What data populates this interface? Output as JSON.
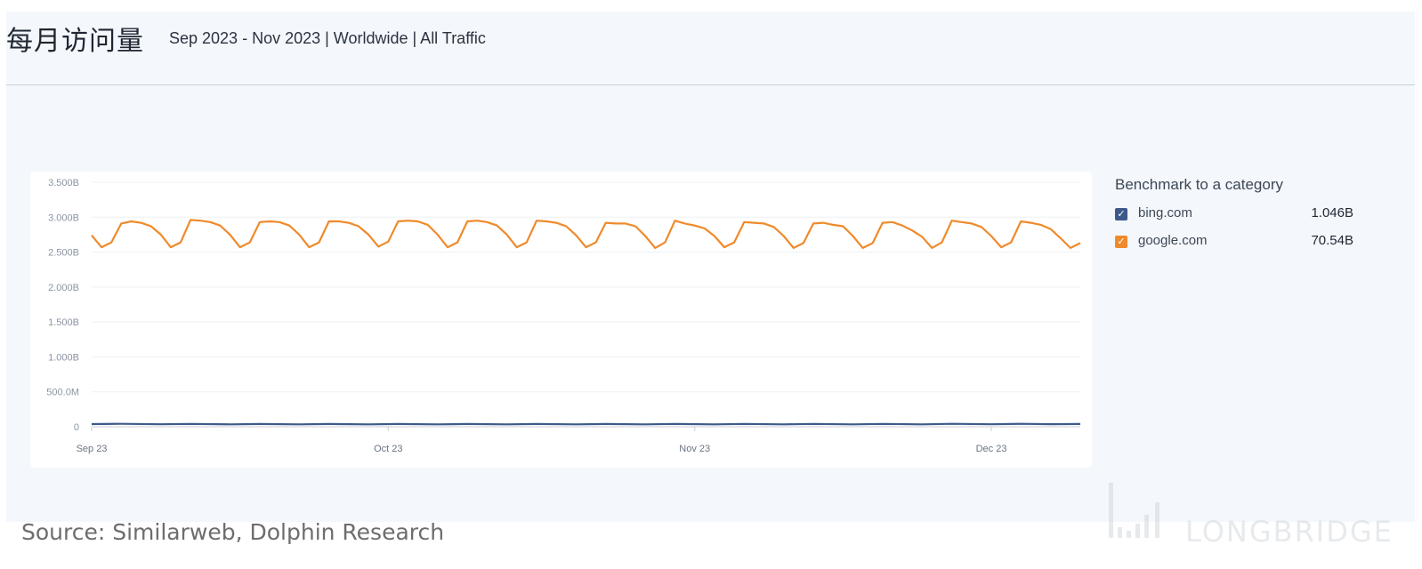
{
  "header": {
    "title": "每月访问量",
    "subtitle": "Sep 2023 - Nov 2023 | Worldwide | All Traffic"
  },
  "legend": {
    "title": "Benchmark to a category",
    "items": [
      {
        "name": "bing.com",
        "value": "1.046B",
        "color": "#3d5a8a",
        "check_icon": "checkbox-checked-icon"
      },
      {
        "name": "google.com",
        "value": "70.54B",
        "color": "#ef8a2b",
        "check_icon": "checkbox-checked-icon"
      }
    ]
  },
  "source": "Source: Similarweb, Dolphin Research",
  "watermark": {
    "text": "LONGBRIDGE",
    "icon": "bar-chart-logo-icon"
  },
  "chart_data": {
    "type": "line",
    "title": "",
    "xlabel": "",
    "ylabel": "",
    "ylim": [
      0,
      3500000000
    ],
    "y_ticks": [
      {
        "value": 0,
        "label": "0"
      },
      {
        "value": 500000000,
        "label": "500.0M"
      },
      {
        "value": 1000000000,
        "label": "1.000B"
      },
      {
        "value": 1500000000,
        "label": "1.500B"
      },
      {
        "value": 2000000000,
        "label": "2.000B"
      },
      {
        "value": 2500000000,
        "label": "2.500B"
      },
      {
        "value": 3000000000,
        "label": "3.000B"
      },
      {
        "value": 3500000000,
        "label": "3.500B"
      }
    ],
    "x_ticks": [
      {
        "date": "2023-09-01",
        "label": "Sep 23"
      },
      {
        "date": "2023-10-01",
        "label": "Oct 23"
      },
      {
        "date": "2023-11-01",
        "label": "Nov 23"
      },
      {
        "date": "2023-12-01",
        "label": "Dec 23"
      }
    ],
    "xlim": [
      "2023-09-01",
      "2023-12-10"
    ],
    "grid": true,
    "legend_position": "right",
    "series": [
      {
        "name": "google.com",
        "color": "#ef8a2b",
        "points": [
          [
            "2023-09-01",
            2740000000
          ],
          [
            "2023-09-02",
            2570000000
          ],
          [
            "2023-09-03",
            2640000000
          ],
          [
            "2023-09-04",
            2910000000
          ],
          [
            "2023-09-05",
            2940000000
          ],
          [
            "2023-09-06",
            2920000000
          ],
          [
            "2023-09-07",
            2870000000
          ],
          [
            "2023-09-08",
            2750000000
          ],
          [
            "2023-09-09",
            2570000000
          ],
          [
            "2023-09-10",
            2640000000
          ],
          [
            "2023-09-11",
            2960000000
          ],
          [
            "2023-09-12",
            2950000000
          ],
          [
            "2023-09-13",
            2930000000
          ],
          [
            "2023-09-14",
            2880000000
          ],
          [
            "2023-09-15",
            2750000000
          ],
          [
            "2023-09-16",
            2570000000
          ],
          [
            "2023-09-17",
            2640000000
          ],
          [
            "2023-09-18",
            2930000000
          ],
          [
            "2023-09-19",
            2940000000
          ],
          [
            "2023-09-20",
            2930000000
          ],
          [
            "2023-09-21",
            2880000000
          ],
          [
            "2023-09-22",
            2750000000
          ],
          [
            "2023-09-23",
            2570000000
          ],
          [
            "2023-09-24",
            2640000000
          ],
          [
            "2023-09-25",
            2940000000
          ],
          [
            "2023-09-26",
            2940000000
          ],
          [
            "2023-09-27",
            2920000000
          ],
          [
            "2023-09-28",
            2870000000
          ],
          [
            "2023-09-29",
            2750000000
          ],
          [
            "2023-09-30",
            2580000000
          ],
          [
            "2023-10-01",
            2650000000
          ],
          [
            "2023-10-02",
            2940000000
          ],
          [
            "2023-10-03",
            2950000000
          ],
          [
            "2023-10-04",
            2940000000
          ],
          [
            "2023-10-05",
            2890000000
          ],
          [
            "2023-10-06",
            2750000000
          ],
          [
            "2023-10-07",
            2570000000
          ],
          [
            "2023-10-08",
            2640000000
          ],
          [
            "2023-10-09",
            2940000000
          ],
          [
            "2023-10-10",
            2950000000
          ],
          [
            "2023-10-11",
            2930000000
          ],
          [
            "2023-10-12",
            2880000000
          ],
          [
            "2023-10-13",
            2750000000
          ],
          [
            "2023-10-14",
            2570000000
          ],
          [
            "2023-10-15",
            2640000000
          ],
          [
            "2023-10-16",
            2950000000
          ],
          [
            "2023-10-17",
            2940000000
          ],
          [
            "2023-10-18",
            2920000000
          ],
          [
            "2023-10-19",
            2870000000
          ],
          [
            "2023-10-20",
            2740000000
          ],
          [
            "2023-10-21",
            2570000000
          ],
          [
            "2023-10-22",
            2640000000
          ],
          [
            "2023-10-23",
            2920000000
          ],
          [
            "2023-10-24",
            2910000000
          ],
          [
            "2023-10-25",
            2910000000
          ],
          [
            "2023-10-26",
            2870000000
          ],
          [
            "2023-10-27",
            2730000000
          ],
          [
            "2023-10-28",
            2560000000
          ],
          [
            "2023-10-29",
            2640000000
          ],
          [
            "2023-10-30",
            2950000000
          ],
          [
            "2023-10-31",
            2910000000
          ],
          [
            "2023-11-01",
            2880000000
          ],
          [
            "2023-11-02",
            2840000000
          ],
          [
            "2023-11-03",
            2730000000
          ],
          [
            "2023-11-04",
            2570000000
          ],
          [
            "2023-11-05",
            2640000000
          ],
          [
            "2023-11-06",
            2930000000
          ],
          [
            "2023-11-07",
            2920000000
          ],
          [
            "2023-11-08",
            2910000000
          ],
          [
            "2023-11-09",
            2860000000
          ],
          [
            "2023-11-10",
            2730000000
          ],
          [
            "2023-11-11",
            2560000000
          ],
          [
            "2023-11-12",
            2630000000
          ],
          [
            "2023-11-13",
            2910000000
          ],
          [
            "2023-11-14",
            2920000000
          ],
          [
            "2023-11-15",
            2890000000
          ],
          [
            "2023-11-16",
            2870000000
          ],
          [
            "2023-11-17",
            2730000000
          ],
          [
            "2023-11-18",
            2560000000
          ],
          [
            "2023-11-19",
            2630000000
          ],
          [
            "2023-11-20",
            2920000000
          ],
          [
            "2023-11-21",
            2930000000
          ],
          [
            "2023-11-22",
            2880000000
          ],
          [
            "2023-11-23",
            2810000000
          ],
          [
            "2023-11-24",
            2720000000
          ],
          [
            "2023-11-25",
            2560000000
          ],
          [
            "2023-11-26",
            2640000000
          ],
          [
            "2023-11-27",
            2950000000
          ],
          [
            "2023-11-28",
            2930000000
          ],
          [
            "2023-11-29",
            2910000000
          ],
          [
            "2023-11-30",
            2860000000
          ],
          [
            "2023-12-01",
            2730000000
          ],
          [
            "2023-12-02",
            2570000000
          ],
          [
            "2023-12-03",
            2640000000
          ],
          [
            "2023-12-04",
            2940000000
          ],
          [
            "2023-12-05",
            2920000000
          ],
          [
            "2023-12-06",
            2890000000
          ],
          [
            "2023-12-07",
            2830000000
          ],
          [
            "2023-12-08",
            2700000000
          ],
          [
            "2023-12-09",
            2560000000
          ],
          [
            "2023-12-10",
            2630000000
          ]
        ]
      },
      {
        "name": "bing.com",
        "color": "#3d5a8a",
        "points": [
          [
            "2023-09-01",
            38000000
          ],
          [
            "2023-09-04",
            42000000
          ],
          [
            "2023-09-08",
            36000000
          ],
          [
            "2023-09-11",
            41000000
          ],
          [
            "2023-09-15",
            35000000
          ],
          [
            "2023-09-18",
            40000000
          ],
          [
            "2023-09-22",
            35000000
          ],
          [
            "2023-09-25",
            40000000
          ],
          [
            "2023-09-29",
            34000000
          ],
          [
            "2023-10-02",
            40000000
          ],
          [
            "2023-10-06",
            35000000
          ],
          [
            "2023-10-09",
            40000000
          ],
          [
            "2023-10-13",
            35000000
          ],
          [
            "2023-10-16",
            40000000
          ],
          [
            "2023-10-20",
            35000000
          ],
          [
            "2023-10-23",
            40000000
          ],
          [
            "2023-10-27",
            35000000
          ],
          [
            "2023-10-30",
            41000000
          ],
          [
            "2023-11-03",
            35000000
          ],
          [
            "2023-11-06",
            41000000
          ],
          [
            "2023-11-10",
            35000000
          ],
          [
            "2023-11-13",
            41000000
          ],
          [
            "2023-11-17",
            35000000
          ],
          [
            "2023-11-20",
            41000000
          ],
          [
            "2023-11-24",
            35000000
          ],
          [
            "2023-11-27",
            42000000
          ],
          [
            "2023-12-01",
            36000000
          ],
          [
            "2023-12-04",
            42000000
          ],
          [
            "2023-12-07",
            37000000
          ],
          [
            "2023-12-10",
            40000000
          ]
        ]
      }
    ]
  }
}
